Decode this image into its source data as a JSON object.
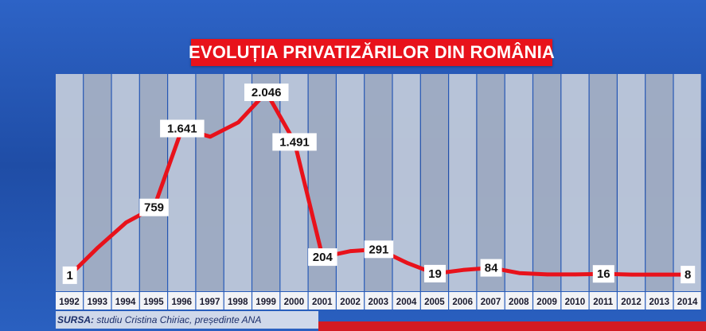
{
  "title": "EVOLUȚIA PRIVATIZĂRILOR DIN ROMÂNIA",
  "source": {
    "label": "SURSA:",
    "text": " studiu Cristina Chiriac, președinte ANA"
  },
  "colors": {
    "background": "#2452b4",
    "title_box": "#e8121b",
    "line": "#e8121b",
    "column_light": "#c3cbda",
    "column_dark": "#a8b2c4"
  },
  "chart_data": {
    "type": "line",
    "title": "EVOLUȚIA PRIVATIZĂRILOR DIN ROMÂNIA",
    "xlabel": "",
    "ylabel": "",
    "x": [
      "1992",
      "1993",
      "1994",
      "1995",
      "1996",
      "1997",
      "1998",
      "1999",
      "2000",
      "2001",
      "2002",
      "2003",
      "2004",
      "2005",
      "2006",
      "2007",
      "2008",
      "2009",
      "2010",
      "2011",
      "2012",
      "2013",
      "2014"
    ],
    "series": [
      {
        "values": [
          1,
          310,
          590,
          759,
          1641,
          1550,
          1710,
          2046,
          1491,
          204,
          270,
          291,
          140,
          19,
          60,
          84,
          25,
          10,
          10,
          16,
          8,
          8,
          8
        ]
      }
    ],
    "data_labels": [
      {
        "x": "1992",
        "text": "1"
      },
      {
        "x": "1995",
        "text": "759"
      },
      {
        "x": "1996",
        "text": "1.641"
      },
      {
        "x": "1999",
        "text": "2.046"
      },
      {
        "x": "2000",
        "text": "1.491"
      },
      {
        "x": "2001",
        "text": "204"
      },
      {
        "x": "2003",
        "text": "291"
      },
      {
        "x": "2005",
        "text": "19"
      },
      {
        "x": "2007",
        "text": "84"
      },
      {
        "x": "2011",
        "text": "16"
      },
      {
        "x": "2014",
        "text": "8"
      }
    ],
    "ylim": [
      0,
      2150
    ],
    "grid": false,
    "legend": "none"
  }
}
